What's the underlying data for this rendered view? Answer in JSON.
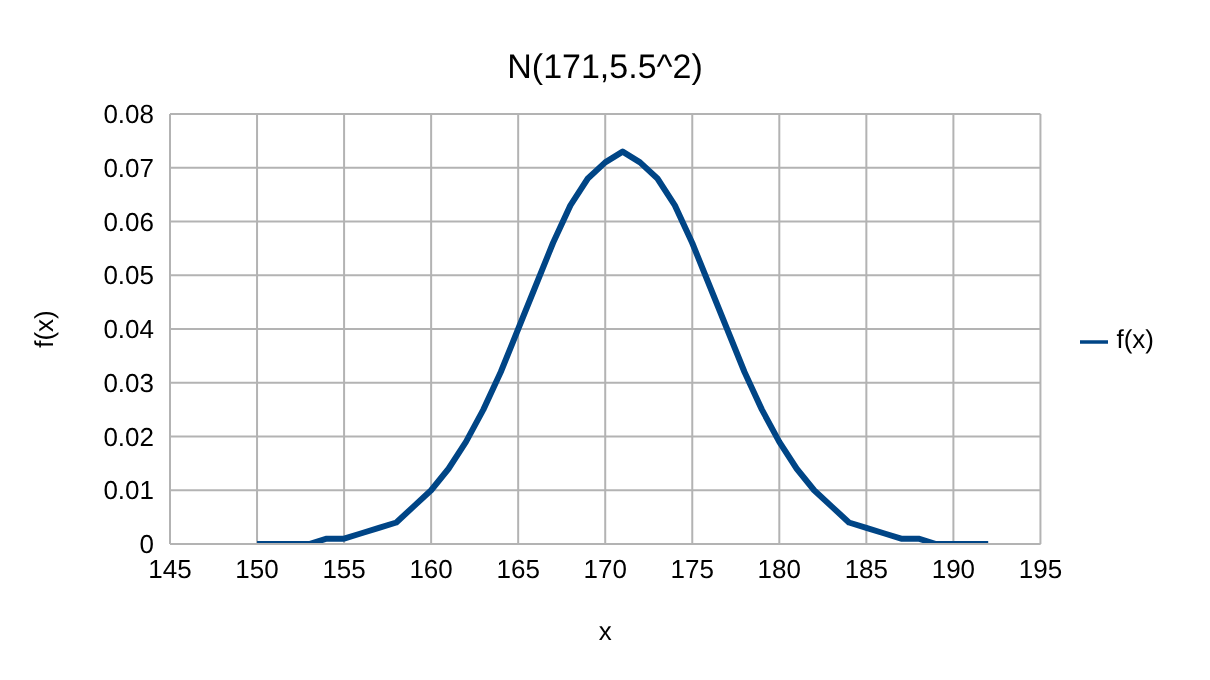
{
  "chart_data": {
    "type": "line",
    "title": "N(171,5.5^2)",
    "xlabel": "x",
    "ylabel": "f(x)",
    "x": [
      150,
      151,
      152,
      153,
      154,
      155,
      156,
      157,
      158,
      159,
      160,
      161,
      162,
      163,
      164,
      165,
      166,
      167,
      168,
      169,
      170,
      171,
      172,
      173,
      174,
      175,
      176,
      177,
      178,
      179,
      180,
      181,
      182,
      183,
      184,
      185,
      186,
      187,
      188,
      189,
      190,
      191,
      192
    ],
    "series": [
      {
        "name": "f(x)",
        "color": "#004586",
        "values": [
          0.0,
          0.0,
          0.0,
          0.0,
          0.001,
          0.001,
          0.002,
          0.003,
          0.004,
          0.007,
          0.01,
          0.014,
          0.019,
          0.025,
          0.032,
          0.04,
          0.048,
          0.056,
          0.063,
          0.068,
          0.071,
          0.073,
          0.071,
          0.068,
          0.063,
          0.056,
          0.048,
          0.04,
          0.032,
          0.025,
          0.019,
          0.014,
          0.01,
          0.007,
          0.004,
          0.003,
          0.002,
          0.001,
          0.001,
          0.0,
          0.0,
          0.0,
          0.0
        ]
      }
    ],
    "xlim": [
      145,
      195
    ],
    "xticks": [
      145,
      150,
      155,
      160,
      165,
      170,
      175,
      180,
      185,
      190,
      195
    ],
    "ylim": [
      0,
      0.08
    ],
    "yticks": [
      0,
      0.01,
      0.02,
      0.03,
      0.04,
      0.05,
      0.06,
      0.07,
      0.08
    ],
    "grid": true,
    "legend": "right",
    "marker": "none",
    "line_style": "solid"
  }
}
